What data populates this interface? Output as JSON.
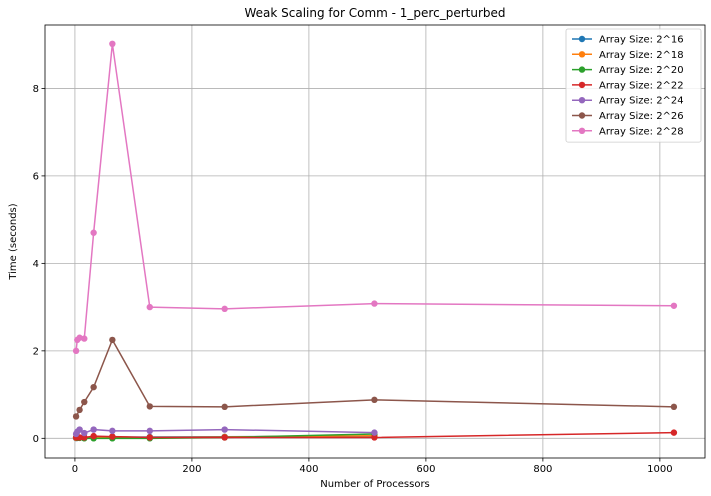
{
  "chart_data": {
    "type": "line",
    "title": "Weak Scaling for Comm - 1_perc_perturbed",
    "xlabel": "Number of Processors",
    "ylabel": "Time (seconds)",
    "xlim": [
      -51.15,
      1077.15
    ],
    "ylim": [
      -0.45,
      9.45
    ],
    "xticks": [
      0,
      200,
      400,
      600,
      800,
      1000
    ],
    "yticks": [
      0,
      2,
      4,
      6,
      8
    ],
    "grid": true,
    "legend_position": "top-right",
    "series": [
      {
        "name": "Array Size: 2^16",
        "color": "#1f77b4",
        "x": [
          2,
          4,
          8,
          16,
          32,
          64,
          128,
          256,
          512
        ],
        "y": [
          0.005,
          0.01,
          0.012,
          0.015,
          0.02,
          0.025,
          0.03,
          0.035,
          0.05
        ]
      },
      {
        "name": "Array Size: 2^18",
        "color": "#ff7f0e",
        "x": [
          2,
          4,
          8,
          16,
          32,
          64,
          128,
          256,
          512
        ],
        "y": [
          0.01,
          0.012,
          0.015,
          0.02,
          0.025,
          0.02,
          0.02,
          0.03,
          0.06
        ]
      },
      {
        "name": "Array Size: 2^20",
        "color": "#2ca02c",
        "x": [
          2,
          4,
          8,
          16,
          32,
          64,
          128,
          256,
          512
        ],
        "y": [
          0.02,
          0.01,
          0.01,
          0.0,
          0.0,
          0.0,
          0.0,
          0.02,
          0.1
        ]
      },
      {
        "name": "Array Size: 2^22",
        "color": "#d62728",
        "x": [
          2,
          4,
          8,
          16,
          32,
          64,
          128,
          256,
          512,
          1024
        ],
        "y": [
          0.02,
          0.02,
          0.02,
          0.02,
          0.05,
          0.04,
          0.02,
          0.02,
          0.02,
          0.13
        ]
      },
      {
        "name": "Array Size: 2^24",
        "color": "#9467bd",
        "x": [
          2,
          4,
          8,
          16,
          32,
          64,
          128,
          256,
          512
        ],
        "y": [
          0.1,
          0.15,
          0.2,
          0.12,
          0.2,
          0.17,
          0.17,
          0.2,
          0.13
        ]
      },
      {
        "name": "Array Size: 2^26",
        "color": "#8c564b",
        "x": [
          2,
          8,
          16,
          32,
          64,
          128,
          256,
          512,
          1024
        ],
        "y": [
          0.5,
          0.65,
          0.83,
          1.17,
          2.25,
          0.73,
          0.72,
          0.88,
          0.72
        ]
      },
      {
        "name": "Array Size: 2^28",
        "color": "#e377c2",
        "x": [
          2,
          4,
          8,
          16,
          32,
          64,
          128,
          256,
          512,
          1024
        ],
        "y": [
          2.0,
          2.25,
          2.3,
          2.28,
          4.7,
          9.02,
          3.0,
          2.96,
          3.08,
          3.03
        ]
      }
    ]
  }
}
